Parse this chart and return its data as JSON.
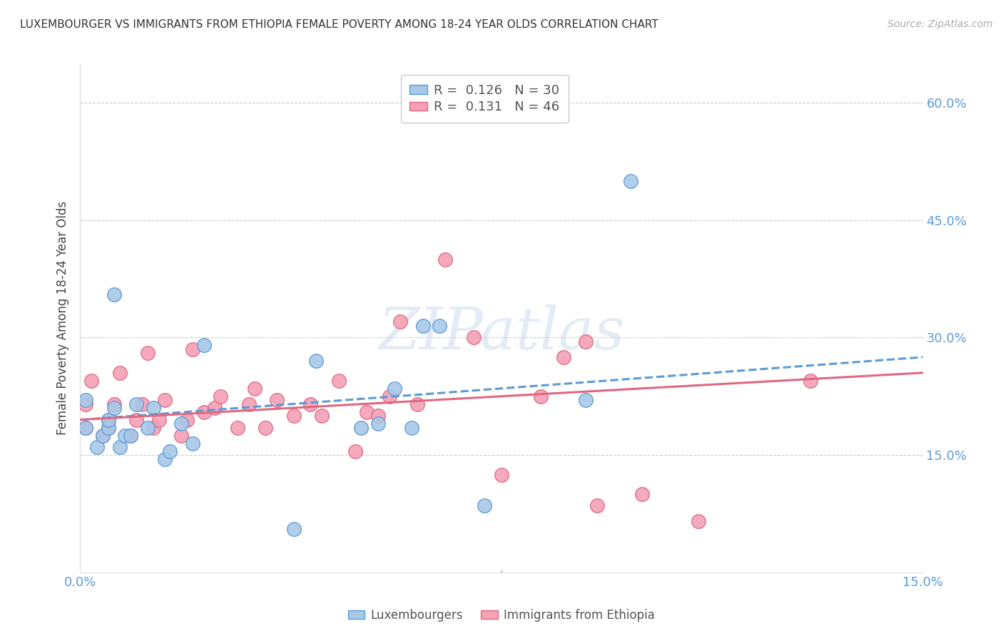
{
  "title": "LUXEMBOURGER VS IMMIGRANTS FROM ETHIOPIA FEMALE POVERTY AMONG 18-24 YEAR OLDS CORRELATION CHART",
  "source": "Source: ZipAtlas.com",
  "ylabel": "Female Poverty Among 18-24 Year Olds",
  "xlim": [
    0.0,
    0.15
  ],
  "ylim": [
    0.0,
    0.65
  ],
  "yticks": [
    0.15,
    0.3,
    0.45,
    0.6
  ],
  "xticks": [
    0.0,
    0.075,
    0.15
  ],
  "xtick_labels": [
    "0.0%",
    "",
    "15.0%"
  ],
  "right_ytick_labels": [
    "15.0%",
    "30.0%",
    "45.0%",
    "60.0%"
  ],
  "color_blue": "#a8c8e8",
  "color_pink": "#f4a0b5",
  "border_blue": "#5b9bd5",
  "border_pink": "#e06880",
  "trend_blue_color": "#5b9bd5",
  "trend_pink_color": "#e06880",
  "watermark": "ZIPatlas",
  "lux_scatter_x": [
    0.001,
    0.001,
    0.003,
    0.004,
    0.005,
    0.005,
    0.006,
    0.006,
    0.007,
    0.008,
    0.009,
    0.01,
    0.012,
    0.013,
    0.015,
    0.016,
    0.018,
    0.02,
    0.022,
    0.038,
    0.042,
    0.05,
    0.053,
    0.056,
    0.059,
    0.061,
    0.064,
    0.072,
    0.09,
    0.098
  ],
  "lux_scatter_y": [
    0.185,
    0.22,
    0.16,
    0.175,
    0.185,
    0.195,
    0.21,
    0.355,
    0.16,
    0.175,
    0.175,
    0.215,
    0.185,
    0.21,
    0.145,
    0.155,
    0.19,
    0.165,
    0.29,
    0.055,
    0.27,
    0.185,
    0.19,
    0.235,
    0.185,
    0.315,
    0.315,
    0.085,
    0.22,
    0.5
  ],
  "eth_scatter_x": [
    0.001,
    0.001,
    0.002,
    0.004,
    0.005,
    0.005,
    0.006,
    0.007,
    0.009,
    0.01,
    0.011,
    0.012,
    0.013,
    0.014,
    0.015,
    0.018,
    0.019,
    0.02,
    0.022,
    0.024,
    0.025,
    0.028,
    0.03,
    0.031,
    0.033,
    0.035,
    0.038,
    0.041,
    0.043,
    0.046,
    0.049,
    0.051,
    0.053,
    0.055,
    0.057,
    0.06,
    0.065,
    0.07,
    0.075,
    0.082,
    0.086,
    0.09,
    0.092,
    0.1,
    0.11,
    0.13
  ],
  "eth_scatter_y": [
    0.185,
    0.215,
    0.245,
    0.175,
    0.185,
    0.195,
    0.215,
    0.255,
    0.175,
    0.195,
    0.215,
    0.28,
    0.185,
    0.195,
    0.22,
    0.175,
    0.195,
    0.285,
    0.205,
    0.21,
    0.225,
    0.185,
    0.215,
    0.235,
    0.185,
    0.22,
    0.2,
    0.215,
    0.2,
    0.245,
    0.155,
    0.205,
    0.2,
    0.225,
    0.32,
    0.215,
    0.4,
    0.3,
    0.125,
    0.225,
    0.275,
    0.295,
    0.085,
    0.1,
    0.065,
    0.245
  ],
  "lux_trend_x": [
    0.0,
    0.15
  ],
  "lux_trend_y": [
    0.195,
    0.275
  ],
  "eth_trend_x": [
    0.0,
    0.15
  ],
  "eth_trend_y": [
    0.195,
    0.255
  ]
}
